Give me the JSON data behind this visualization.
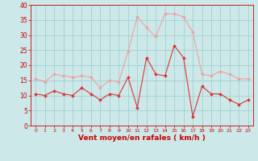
{
  "x": [
    0,
    1,
    2,
    3,
    4,
    5,
    6,
    7,
    8,
    9,
    10,
    11,
    12,
    13,
    14,
    15,
    16,
    17,
    18,
    19,
    20,
    21,
    22,
    23
  ],
  "vent_moyen": [
    10.5,
    10,
    11.5,
    10.5,
    10,
    12.5,
    10.5,
    8.5,
    10.5,
    10,
    16,
    6,
    22.5,
    17,
    16.5,
    26.5,
    22.5,
    3,
    13,
    10.5,
    10.5,
    8.5,
    7,
    8.5
  ],
  "rafales": [
    15.5,
    14.5,
    17,
    16.5,
    16,
    16.5,
    16,
    12.5,
    15,
    14.5,
    24.5,
    36,
    32.5,
    29.5,
    37,
    37,
    36,
    31,
    17,
    16.5,
    18,
    17,
    15.5,
    15.5
  ],
  "color_moyen": "#dd3333",
  "color_rafales": "#f0a0a0",
  "xlabel": "Vent moyen/en rafales ( km/h )",
  "ylim": [
    0,
    40
  ],
  "yticks": [
    0,
    5,
    10,
    15,
    20,
    25,
    30,
    35,
    40
  ],
  "background_color": "#cce8e8",
  "grid_color": "#99cccc",
  "xlabel_color": "#cc0000",
  "tick_color": "#cc0000"
}
